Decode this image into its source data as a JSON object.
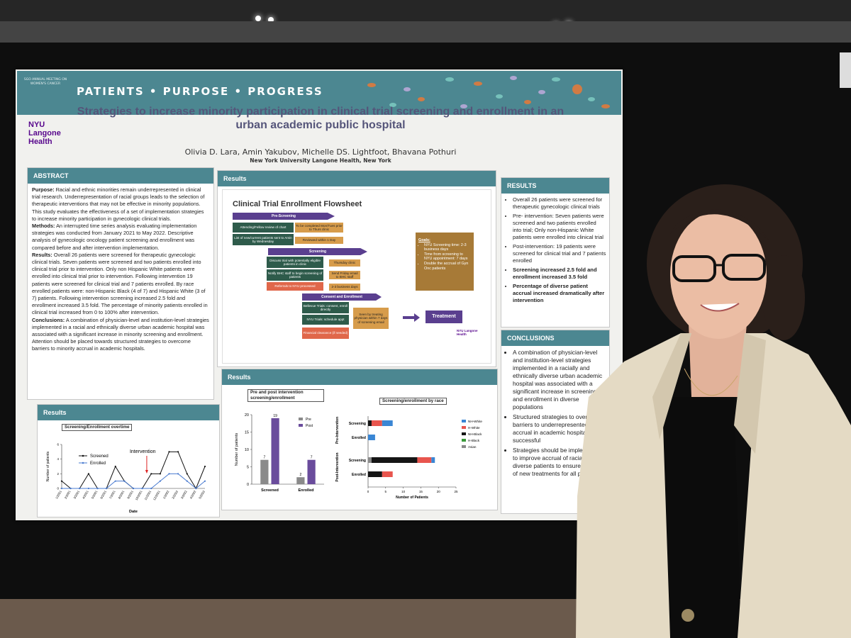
{
  "header": {
    "banner": "PATIENTS • PURPOSE • PROGRESS",
    "meeting": "SGO ANNUAL MEETING ON WOMEN'S CANCER",
    "logo": "NYU Langone Health",
    "title": "Strategies to increase minority participation in clinical trial screening and enrollment in an urban academic public hospital",
    "authors": "Olivia D. Lara, Amin Yakubov, Michelle DS. Lightfoot, Bhavana Pothuri",
    "affiliation": "New York University Langone Health, New York"
  },
  "abstract": {
    "heading": "ABSTRACT",
    "paragraphs": [
      {
        "label": "Purpose:",
        "text": "Racial and ethnic minorities remain underrepresented in clinical trial research. Underrepresentation of racial groups leads to the selection of therapeutic interventions that may not be effective in minority populations. This study evaluates the effectiveness of a set of implementation strategies to increase minority participation in gynecologic clinical trials."
      },
      {
        "label": "Methods:",
        "text": "An interrupted time series analysis evaluating implementation strategies was conducted from January 2021 to May 2022. Descriptive analysis of gynecologic oncology patient screening and enrollment was compared before and after intervention implementation."
      },
      {
        "label": "Results:",
        "text": "Overall 26 patients were screened for therapeutic gynecologic clinical trials. Seven patients were screened and two patients enrolled into clinical trial prior to intervention. Only non Hispanic White patients were enrolled into clinical trial prior to intervention. Following intervention 19 patients were screened for clinical trial and 7 patients enrolled. By race enrolled patients were: non-Hispanic Black (4 of 7) and Hispanic White (3 of 7) patients. Following intervention screening increased 2.5 fold and enrollment increased 3.5 fold. The percentage of minority patients enrolled in clinical trial increased from 0 to 100% after intervention."
      },
      {
        "label": "Conclusions:",
        "text": "A combination of physician-level and institution-level strategies implemented in a racial and ethnically diverse urban academic hospital was associated with a significant increase in minority screening and enrollment. Attention should be placed towards structured strategies to overcome barriers to minority accrual in academic hospitals."
      }
    ]
  },
  "results_timeline": {
    "heading": "Results",
    "chart": {
      "type": "line",
      "title": "Screening/Enrollment overtime",
      "annotation": "Intervention",
      "categories": [
        "1/2021",
        "2/2021",
        "3/2021",
        "4/2021",
        "5/2021",
        "6/2021",
        "7/2021",
        "8/2021",
        "9/2021",
        "10/2021",
        "11/2021",
        "12/2021",
        "1/2022",
        "2/2022",
        "3/2022",
        "4/2022",
        "5/2022"
      ],
      "series": [
        {
          "name": "Screened",
          "color": "#111111",
          "values": [
            1,
            0,
            0,
            2,
            0,
            0,
            3,
            1,
            0,
            0,
            2,
            2,
            5,
            5,
            2,
            0,
            3
          ]
        },
        {
          "name": "Enrolled",
          "color": "#4a7bd0",
          "values": [
            0,
            0,
            0,
            0,
            0,
            0,
            1,
            1,
            0,
            0,
            0,
            1,
            2,
            2,
            1,
            0,
            1
          ]
        }
      ],
      "ylim": [
        0,
        6
      ],
      "yticks": [
        0,
        2,
        4,
        6
      ],
      "xlabel": "Date",
      "ylabel": "Number of patients"
    }
  },
  "flowsheet": {
    "heading": "Results",
    "title": "Clinical Trial Enrollment Flowsheet",
    "stages": [
      "Pre-Screening",
      "Screening",
      "Consent and Enrollment"
    ],
    "steps": [
      "Attending/Fellow review of chart",
      "To be completed Mon/Tues prior to Thurs clinic",
      "List of new/current patients sent to Amin by Wednesday",
      "Reviewed within 1 Day",
      "Discuss trial with potentially eligible patients in clinic",
      "Thursday clinic",
      "Notify BHC staff to begin screening of patients",
      "Send Friday email to BHC staff",
      "Referrals to NYU processed",
      "2-3 business days",
      "Bellevue Trials: consent, enroll directly",
      "NYU Trials: schedule appt",
      "Financial clearance (if needed)",
      "Seen by treating physician within 7 days of screening email"
    ],
    "goals": {
      "heading": "Goals:",
      "items": [
        "NYU Screening time: 2-3 business days",
        "Time from screening to NYU appointment: 7 days",
        "Double the accrual of Gyn Onc patients"
      ]
    },
    "outcome": "Treatment",
    "logo": "NYU Langone Health"
  },
  "results_charts": {
    "heading": "Results",
    "prepost": {
      "type": "bar",
      "title": "Pre and post intervention screening/enrollment",
      "categories": [
        "Screened",
        "Enrolled"
      ],
      "series": [
        {
          "name": "Pre",
          "color": "#8a8a8a",
          "values": [
            7,
            2
          ]
        },
        {
          "name": "Post",
          "color": "#6a4c9c",
          "values": [
            19,
            7
          ]
        }
      ],
      "ylim": [
        0,
        20
      ],
      "yticks": [
        0,
        5,
        10,
        15,
        20
      ],
      "ylabel": "Number of patients"
    },
    "race": {
      "type": "stacked-barh",
      "title": "Screening/enrollment by race",
      "groups": [
        "Pre-Intervention",
        "Post-Intervention"
      ],
      "categories": [
        "Screening",
        "Enrolled",
        "Screening",
        "Enrolled"
      ],
      "series": [
        {
          "name": "NH-White",
          "color": "#3a86d4",
          "values": [
            3,
            2,
            1,
            0
          ]
        },
        {
          "name": "H-White",
          "color": "#e8554e",
          "values": [
            3,
            0,
            4,
            3
          ]
        },
        {
          "name": "NH-Black",
          "color": "#151515",
          "values": [
            1,
            0,
            13,
            4
          ]
        },
        {
          "name": "H-Black",
          "color": "#3a9a3a",
          "values": [
            0,
            0,
            0,
            0
          ]
        },
        {
          "name": "Asian",
          "color": "#8a8a8a",
          "values": [
            0,
            0,
            1,
            0
          ]
        }
      ],
      "xlim": [
        0,
        25
      ],
      "xticks": [
        0,
        5,
        10,
        15,
        20,
        25
      ],
      "xlabel": "Number of Patients"
    }
  },
  "results_summary": {
    "heading": "RESULTS",
    "items": [
      "Overall 26 patients were screened for therapeutic gynecologic clinical trials",
      "Pre- intervention: Seven patients were screened and two patients enrolled into trial; Only non-Hispanic White patients were enrolled into clinical trial",
      "Post-intervention: 19 patients were screened for clinical trial and 7 patients enrolled",
      "Screening increased 2.5 fold and enrollment increased 3.5 fold",
      "Percentage of diverse patient accrual increased dramatically after intervention"
    ]
  },
  "conclusions": {
    "heading": "CONCLUSIONS",
    "items": [
      "A combination of physician-level and institution-level strategies implemented in a racially and ethnically diverse urban academic hospital was associated with a significant increase in screening and enrollment in diverse populations",
      "Structured strategies to overcome barriers to underrepresented accrual in academic hospitals are successful",
      "Strategies should be implemented to improve accrual of racial/ethnic diverse patients to ensure efficacy of new treatments for all patients."
    ]
  }
}
